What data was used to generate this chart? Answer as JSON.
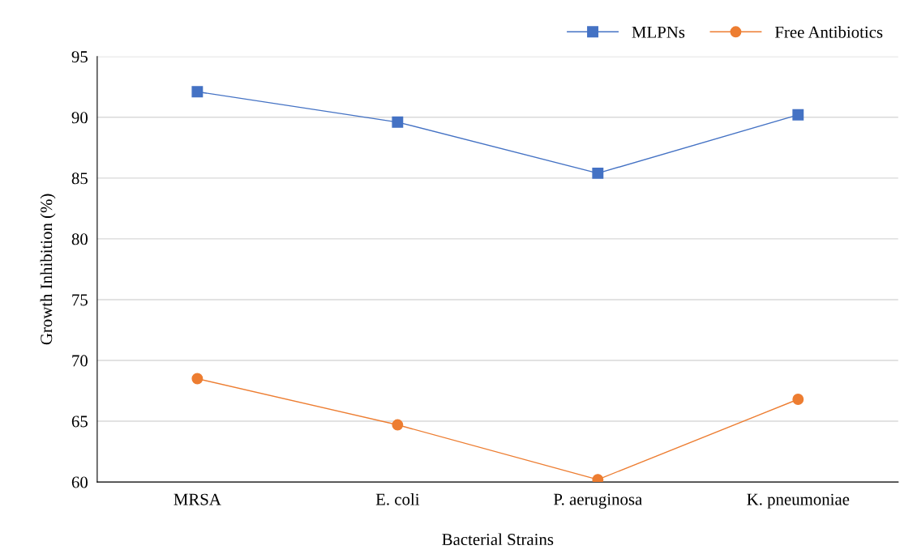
{
  "chart_data": {
    "type": "line",
    "xlabel": "Bacterial Strains",
    "ylabel": "Growth Inhibition (%)",
    "categories": [
      "MRSA",
      "E. coli",
      "P. aeruginosa",
      "K. pneumoniae"
    ],
    "series": [
      {
        "name": "MLPNs",
        "color": "#4472c4",
        "marker": "square",
        "values": [
          92.1,
          89.6,
          85.4,
          90.2
        ]
      },
      {
        "name": "Free Antibiotics",
        "color": "#ed7d31",
        "marker": "circle",
        "values": [
          68.5,
          64.7,
          60.2,
          66.8
        ]
      }
    ],
    "ylim": [
      60,
      95
    ],
    "yticks": [
      60,
      65,
      70,
      75,
      80,
      85,
      90,
      95
    ],
    "grid": "y",
    "legend": "top right",
    "line_style": "solid"
  }
}
